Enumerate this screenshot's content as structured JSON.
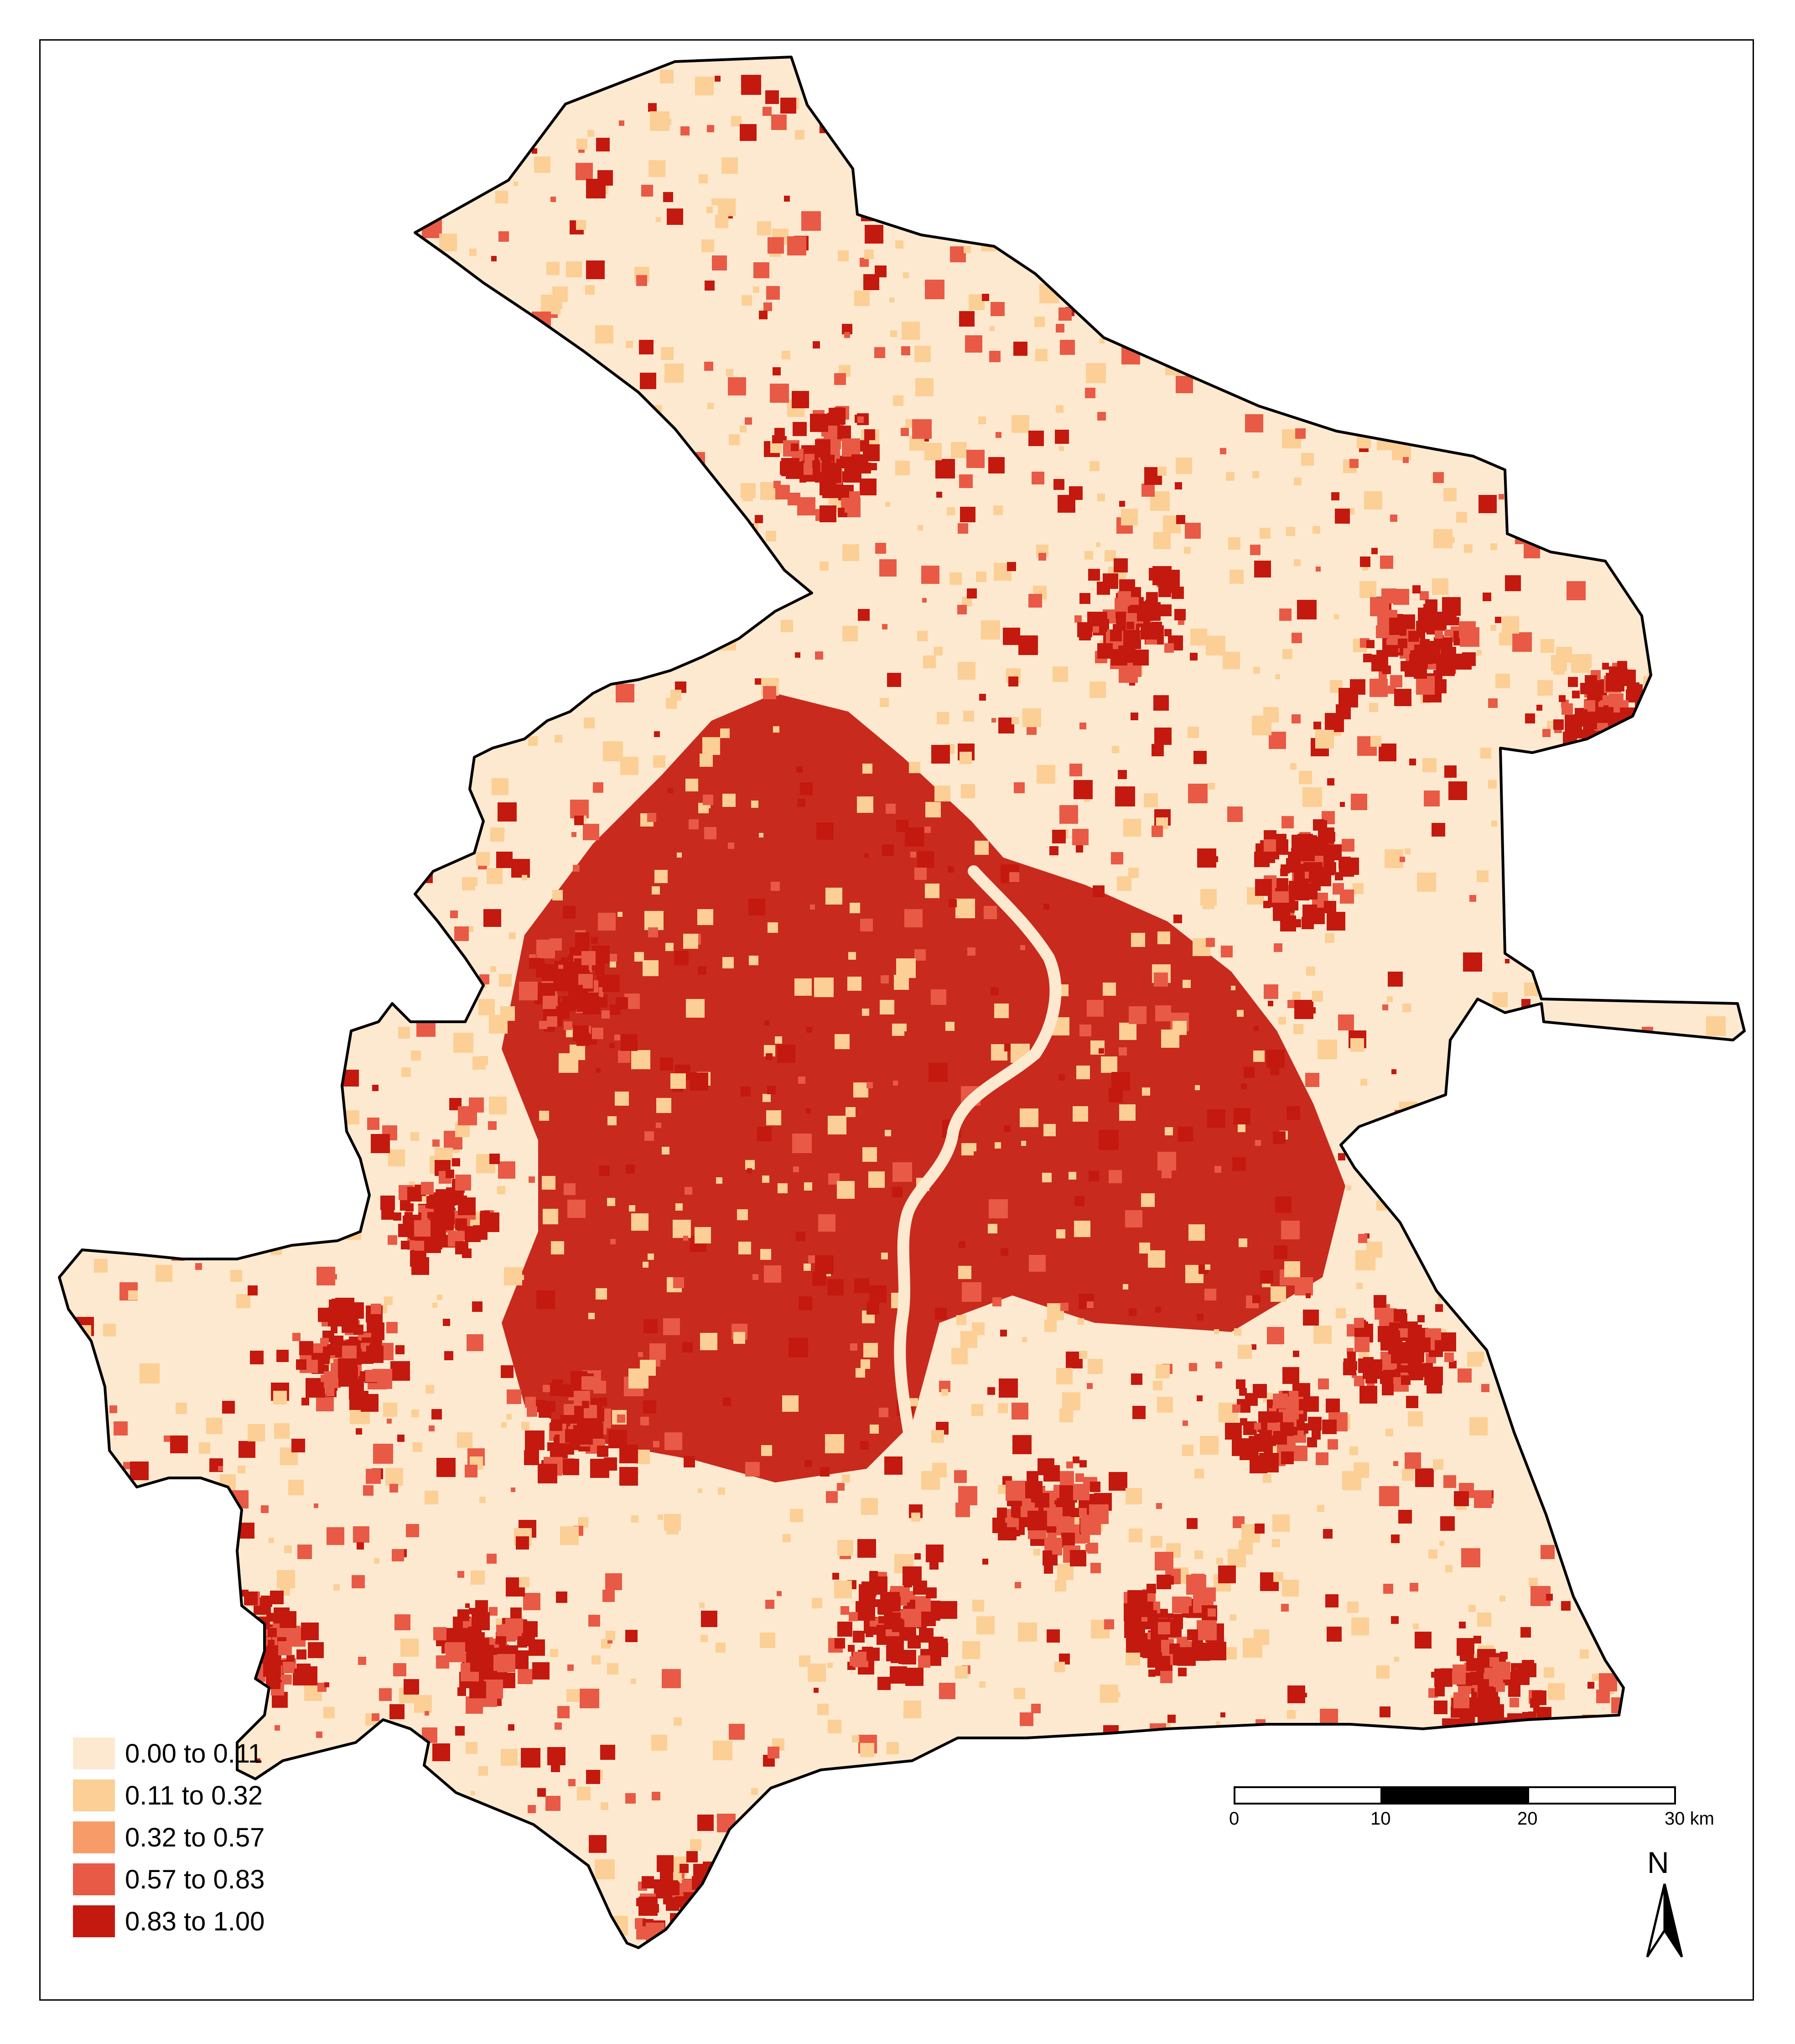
{
  "legend": {
    "classes": [
      {
        "label": "0.00 to 0.11",
        "color": "#fde9cf"
      },
      {
        "label": "0.11 to 0.32",
        "color": "#fbcf95"
      },
      {
        "label": "0.32 to 0.57",
        "color": "#f79b68"
      },
      {
        "label": "0.57 to 0.83",
        "color": "#e85a45"
      },
      {
        "label": "0.83 to 1.00",
        "color": "#c4190f"
      }
    ]
  },
  "scale_bar": {
    "ticks": [
      "0",
      "10",
      "20",
      "30 km"
    ]
  },
  "north_arrow": {
    "label": "N",
    "icon": "north-arrow-icon"
  },
  "colors": {
    "background": "#fde9cf",
    "outline": "#000000",
    "dense": "#c4190f",
    "medium": "#e85a45",
    "light": "#fbcf95"
  }
}
